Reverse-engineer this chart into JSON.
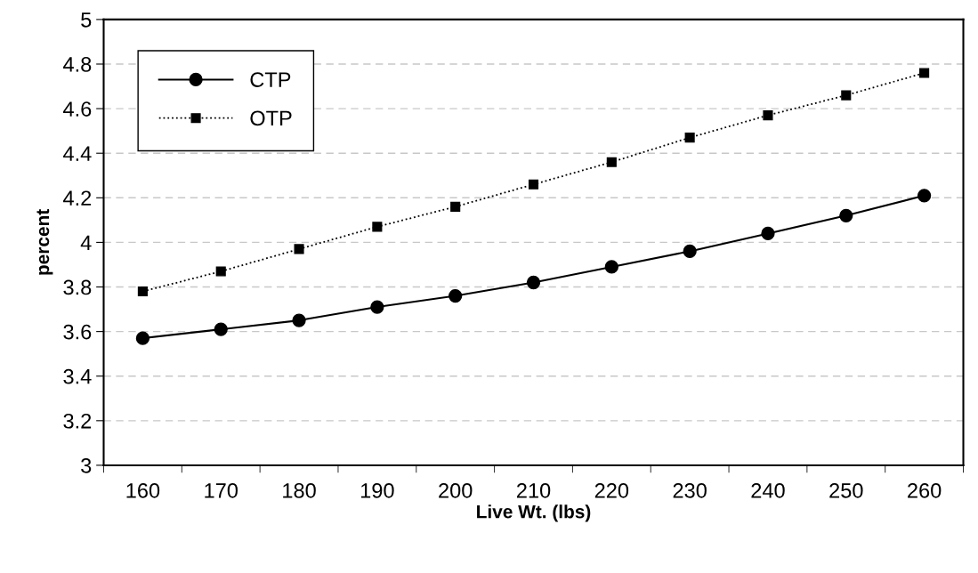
{
  "chart_data": {
    "type": "line",
    "xlabel": "Live Wt. (lbs)",
    "ylabel": "percent",
    "categories": [
      "160",
      "170",
      "180",
      "190",
      "200",
      "210",
      "220",
      "230",
      "240",
      "250",
      "260"
    ],
    "series": [
      {
        "name": "CTP",
        "color": "#000000",
        "marker": "circle",
        "line_style": "solid",
        "values": [
          3.57,
          3.61,
          3.65,
          3.71,
          3.76,
          3.82,
          3.89,
          3.96,
          4.04,
          4.12,
          4.21
        ]
      },
      {
        "name": "OTP",
        "color": "#000000",
        "marker": "square",
        "line_style": "dotted",
        "values": [
          3.78,
          3.87,
          3.97,
          4.07,
          4.16,
          4.26,
          4.36,
          4.47,
          4.57,
          4.66,
          4.76
        ]
      }
    ],
    "ylim": [
      3,
      5
    ],
    "yticks": [
      3,
      {
        "value": 3.2,
        "label": "3.2"
      },
      {
        "value": 3.4,
        "label": "3.4"
      },
      {
        "value": 3.6,
        "label": "3.6"
      },
      {
        "value": 3.8,
        "label": "3.8"
      },
      4,
      {
        "value": 4.2,
        "label": "4.2"
      },
      {
        "value": 4.4,
        "label": "4.4"
      },
      {
        "value": 4.6,
        "label": "4.6"
      },
      {
        "value": 4.8,
        "label": "4.8"
      },
      5
    ],
    "grid": "y",
    "legend": "top left"
  }
}
